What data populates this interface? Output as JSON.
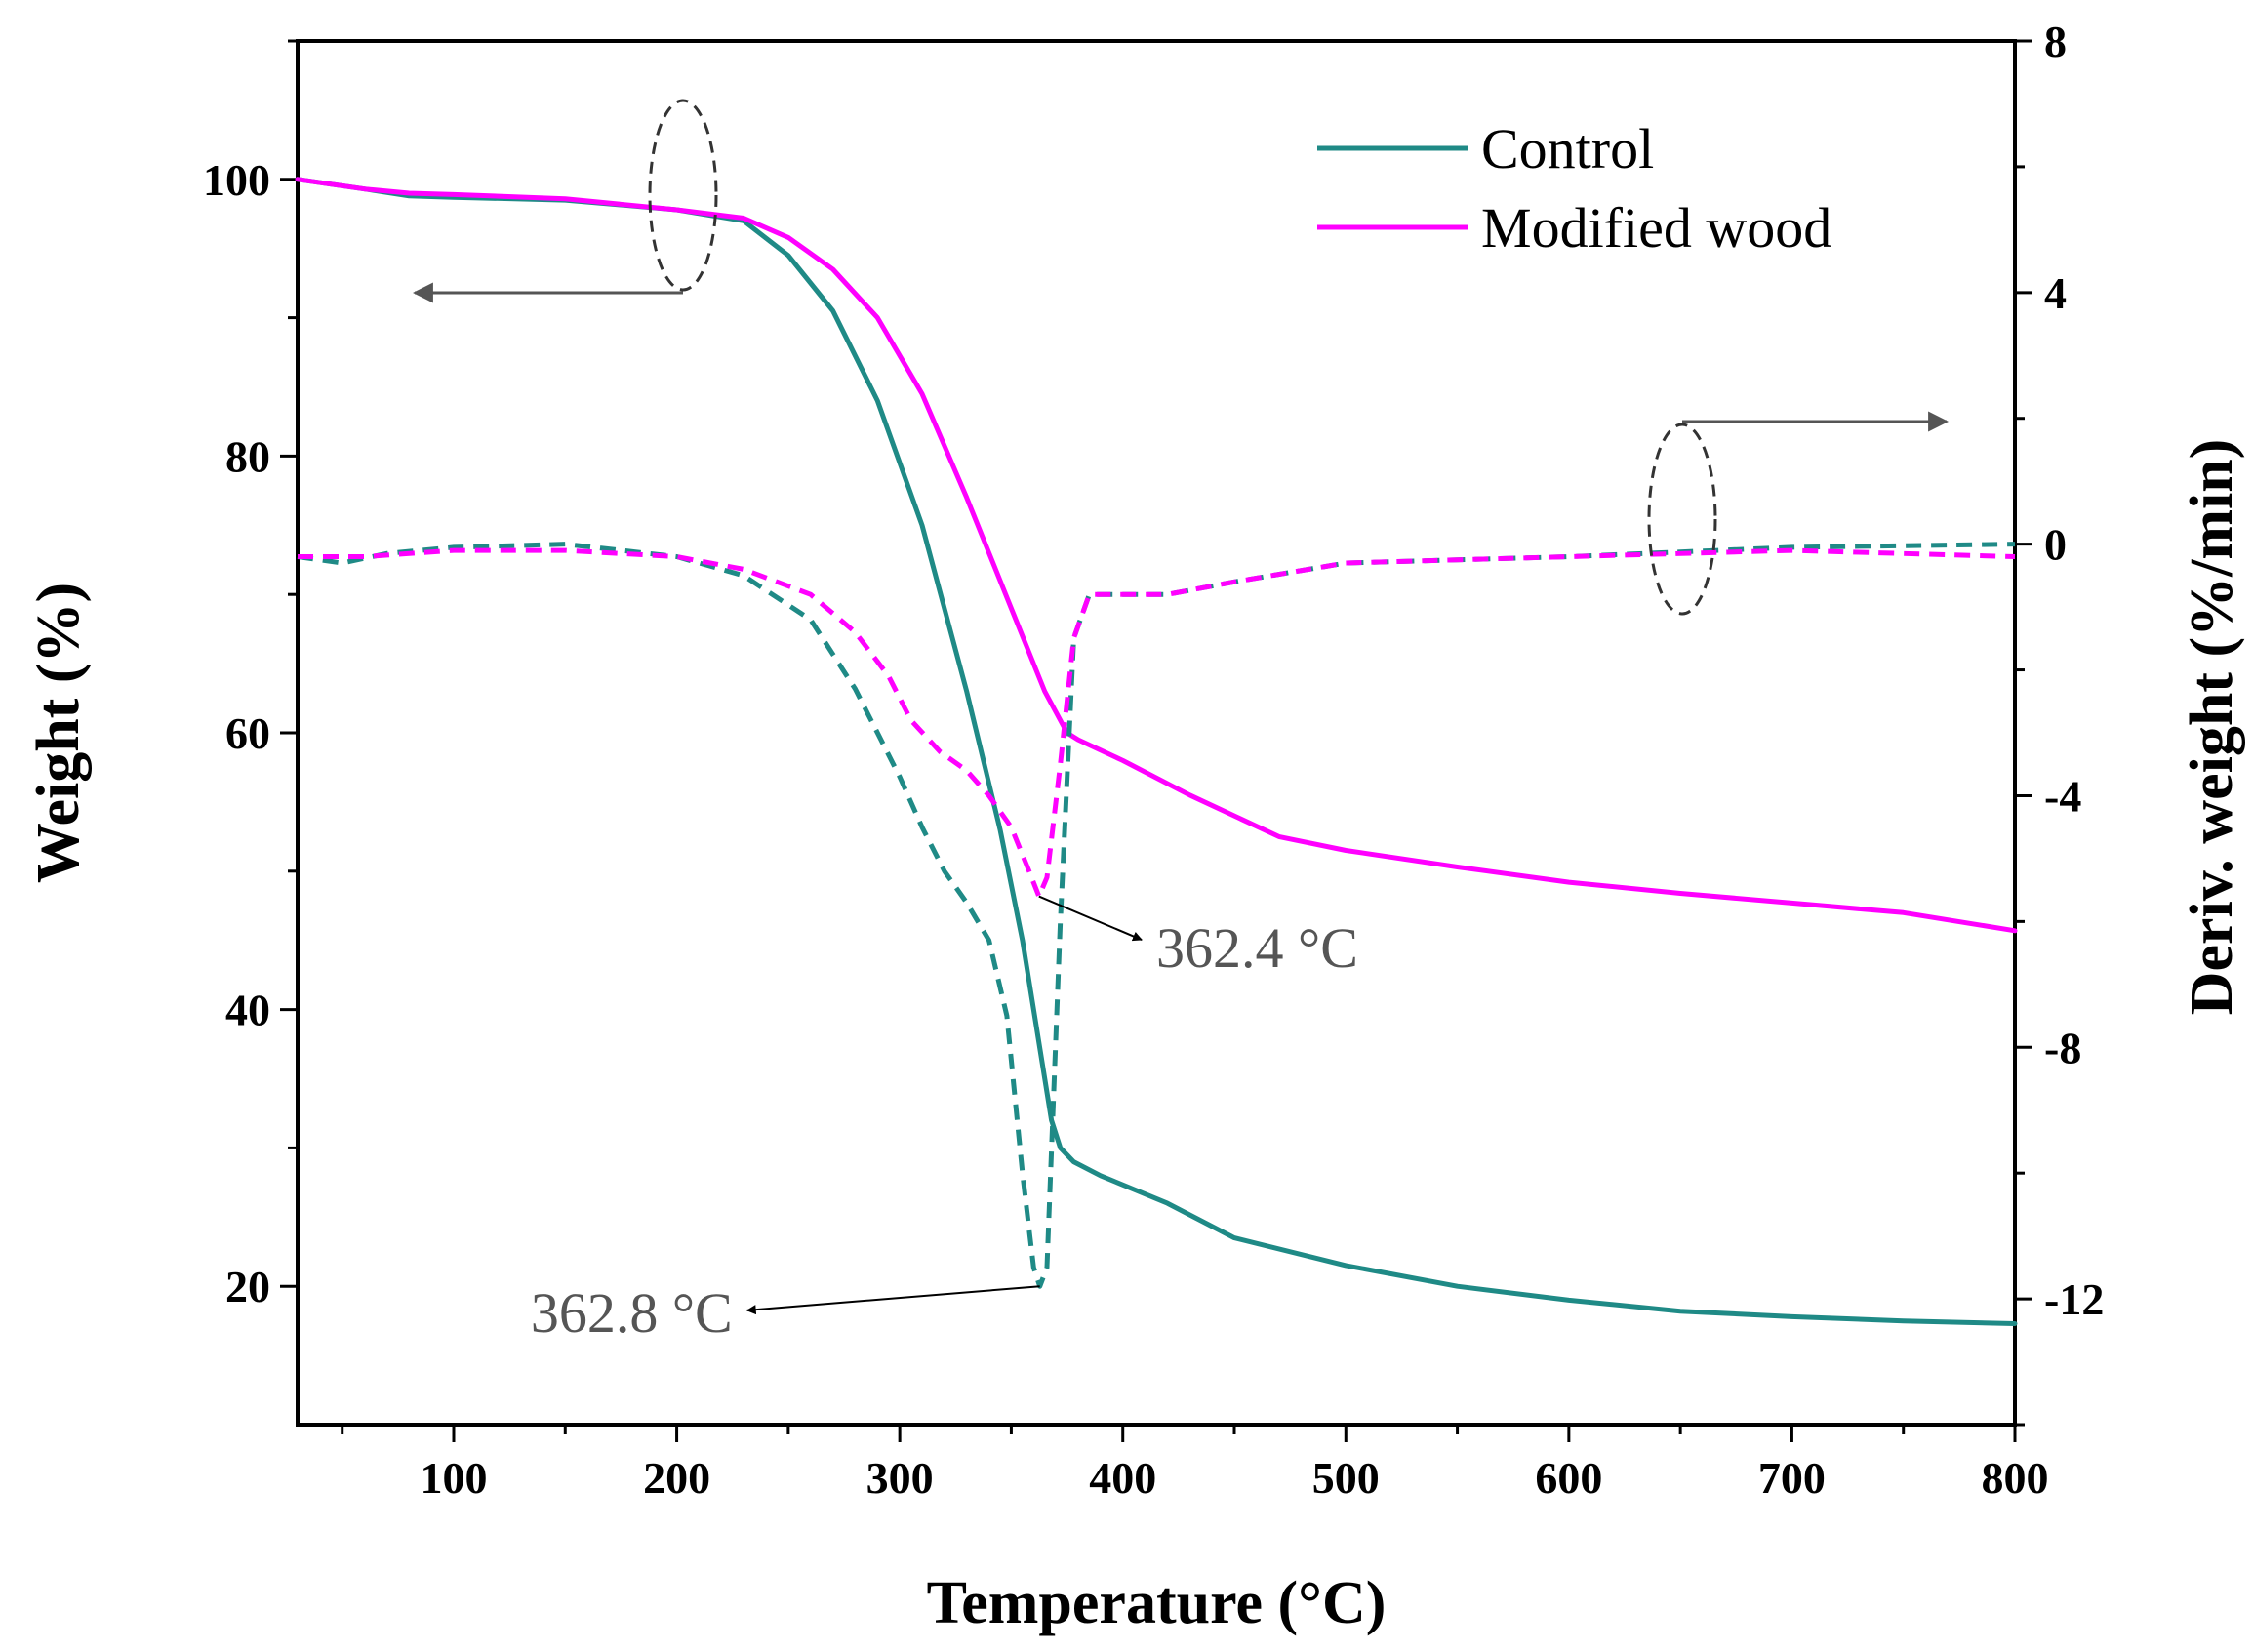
{
  "chart_data": {
    "type": "line",
    "xlabel": "Temperature (°C)",
    "ylabel_left": "Weight (%)",
    "ylabel_right": "Deriv. weight (%/min)",
    "xlim": [
      30,
      800
    ],
    "ylim_left": [
      10,
      110
    ],
    "ylim_right": [
      -14,
      8
    ],
    "x_ticks": [
      100,
      200,
      300,
      400,
      500,
      600,
      700,
      800
    ],
    "y_ticks_left": [
      20,
      40,
      60,
      80,
      100
    ],
    "y_ticks_right": [
      -12,
      -8,
      -4,
      0,
      4,
      8
    ],
    "colors": {
      "control": "#1f8a86",
      "modified": "#ff00ff",
      "annotation": "#555555"
    },
    "series": [
      {
        "name": "Control",
        "kind": "TG",
        "axis": "left",
        "color": "#1f8a86",
        "x": [
          30,
          60,
          80,
          100,
          150,
          200,
          230,
          250,
          270,
          290,
          310,
          330,
          345,
          355,
          362,
          368,
          372,
          378,
          390,
          420,
          450,
          500,
          550,
          600,
          650,
          700,
          750,
          800
        ],
        "y": [
          100,
          99.3,
          98.8,
          98.7,
          98.5,
          97.8,
          97,
          94.5,
          90.5,
          84,
          75,
          63,
          53,
          45,
          38,
          32,
          30,
          29,
          28,
          26,
          23.5,
          21.5,
          20,
          19,
          18.2,
          17.8,
          17.5,
          17.3
        ]
      },
      {
        "name": "Modified wood",
        "kind": "TG",
        "axis": "left",
        "color": "#ff00ff",
        "x": [
          30,
          60,
          80,
          100,
          150,
          200,
          230,
          250,
          270,
          290,
          310,
          330,
          350,
          365,
          375,
          380,
          400,
          430,
          470,
          500,
          550,
          600,
          650,
          700,
          750,
          800
        ],
        "y": [
          100,
          99.3,
          99,
          98.9,
          98.6,
          97.8,
          97.2,
          95.8,
          93.5,
          90,
          84.5,
          77,
          69,
          63,
          60,
          59.5,
          58,
          55.5,
          52.5,
          51.5,
          50.3,
          49.2,
          48.4,
          47.7,
          47,
          45.7
        ]
      },
      {
        "name": "Control",
        "kind": "DTG",
        "axis": "right",
        "color": "#1f8a86",
        "dashed": true,
        "x": [
          30,
          50,
          70,
          100,
          150,
          200,
          230,
          260,
          280,
          290,
          300,
          310,
          320,
          330,
          340,
          348,
          355,
          360,
          362.8,
          366,
          372,
          378,
          385,
          420,
          450,
          500,
          600,
          700,
          800
        ],
        "y": [
          -0.2,
          -0.3,
          -0.15,
          -0.05,
          0,
          -0.2,
          -0.5,
          -1.2,
          -2.3,
          -3,
          -3.7,
          -4.5,
          -5.2,
          -5.7,
          -6.3,
          -7.5,
          -10,
          -11.5,
          -11.8,
          -11.5,
          -6,
          -1.5,
          -0.8,
          -0.8,
          -0.6,
          -0.3,
          -0.2,
          -0.05,
          0
        ]
      },
      {
        "name": "Modified wood",
        "kind": "DTG",
        "axis": "right",
        "color": "#ff00ff",
        "dashed": true,
        "x": [
          30,
          60,
          100,
          150,
          200,
          230,
          260,
          280,
          295,
          305,
          318,
          330,
          340,
          350,
          358,
          362.4,
          366,
          372,
          378,
          385,
          420,
          450,
          500,
          600,
          700,
          800
        ],
        "y": [
          -0.2,
          -0.2,
          -0.1,
          -0.1,
          -0.2,
          -0.4,
          -0.8,
          -1.4,
          -2.1,
          -2.8,
          -3.3,
          -3.6,
          -4,
          -4.5,
          -5.2,
          -5.6,
          -5.3,
          -3.5,
          -1.5,
          -0.8,
          -0.8,
          -0.6,
          -0.3,
          -0.2,
          -0.1,
          -0.2
        ]
      }
    ],
    "legend": [
      "Control",
      "Modified wood"
    ],
    "legend_position": "top-right",
    "annotations": [
      {
        "text": "362.4 °C",
        "x": 362.4,
        "y": -5.6,
        "axis": "right",
        "label_at": {
          "x": 415,
          "y": -6.6
        }
      },
      {
        "text": "362.8 °C",
        "x": 362.8,
        "y": -11.8,
        "axis": "right",
        "label_at": {
          "x": 225,
          "y": -12.4
        }
      }
    ]
  }
}
